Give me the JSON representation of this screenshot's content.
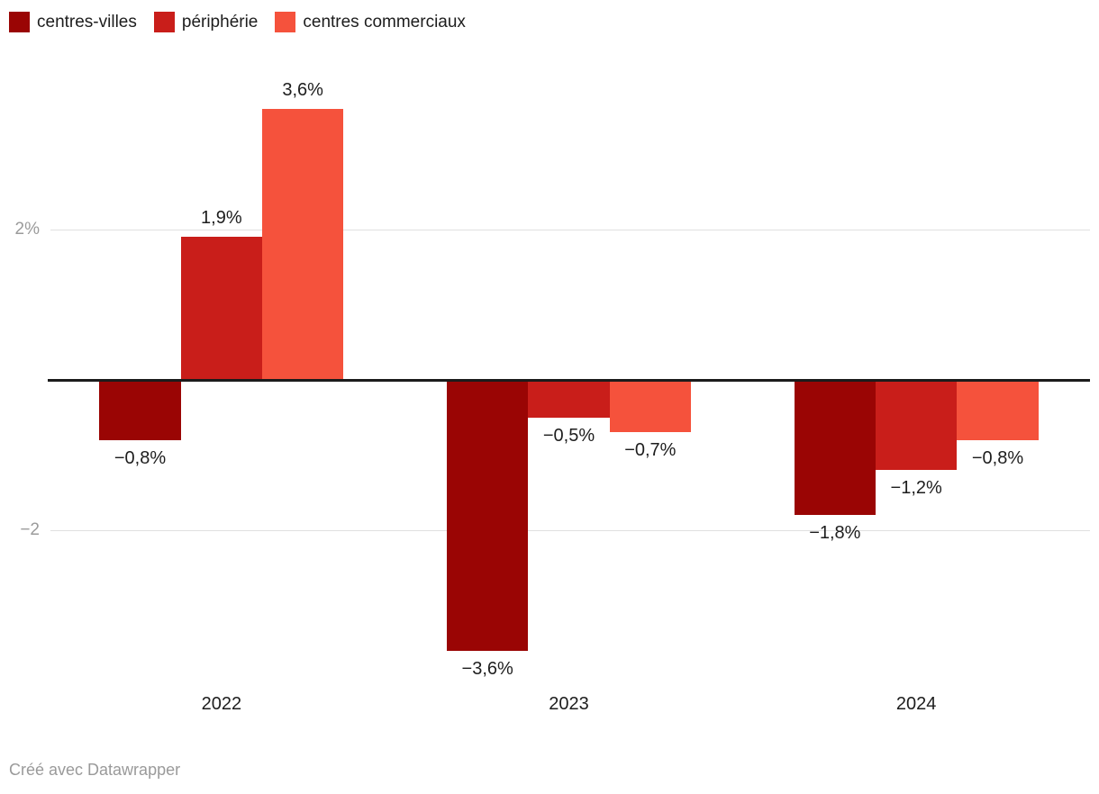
{
  "chart_data": {
    "type": "bar",
    "title": "",
    "categories": [
      "2022",
      "2023",
      "2024"
    ],
    "series": [
      {
        "name": "centres-villes",
        "color": "#9a0504",
        "values": [
          -0.8,
          -3.6,
          -1.8
        ],
        "value_labels": [
          "−0,8%",
          "−3,6%",
          "−1,8%"
        ]
      },
      {
        "name": "périphérie",
        "color": "#c91e1a",
        "values": [
          1.9,
          -0.5,
          -1.2
        ],
        "value_labels": [
          "1,9%",
          "−0,5%",
          "−1,2%"
        ]
      },
      {
        "name": "centres commerciaux",
        "color": "#f5523c",
        "values": [
          3.6,
          -0.7,
          -0.8
        ],
        "value_labels": [
          "3,6%",
          "−0,7%",
          "−0,8%"
        ]
      }
    ],
    "y_axis": {
      "ticks": [
        {
          "value": 2,
          "label": "2%"
        },
        {
          "value": -2,
          "label": "−2"
        }
      ],
      "range": [
        -3.9,
        4.2
      ],
      "baseline": 0
    },
    "unit": "%",
    "grid": "horizontal",
    "legend_position": "top-left"
  },
  "footer": {
    "credit": "Créé avec Datawrapper"
  },
  "colors": {
    "background": "#ffffff",
    "gridline": "#e0e0e0",
    "baseline": "#1b1b1b",
    "tick_label": "#9b9b9b",
    "value_label": "#1d1d1d",
    "category_label": "#1d1d1d",
    "footer_text": "#9a9a9a"
  }
}
